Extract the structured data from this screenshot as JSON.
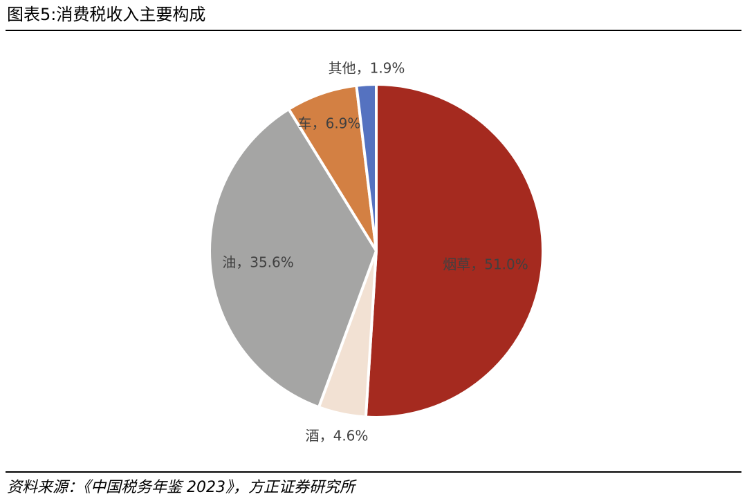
{
  "chart_data": {
    "type": "pie",
    "title": "图表5:消费税收入主要构成",
    "source": "资料来源：《中国税务年鉴 2023》，方正证券研究所",
    "values": [
      51.0,
      4.6,
      35.6,
      6.9,
      1.9
    ],
    "value_labels": [
      "烟草，51.0%",
      "酒，4.6%",
      "油，35.6%",
      "车，6.9%",
      "其他，1.9%"
    ],
    "colors": [
      "#a52a1f",
      "#f2e1d3",
      "#a5a5a4",
      "#d38043",
      "#5572c0"
    ]
  }
}
